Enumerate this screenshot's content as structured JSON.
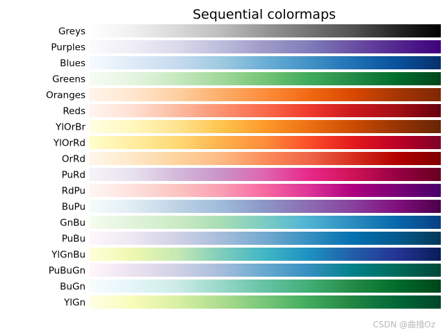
{
  "chart_data": {
    "type": "heatmap",
    "title": "Sequential colormaps",
    "colormaps": [
      {
        "name": "Greys",
        "stops": [
          "#ffffff",
          "#f0f0f0",
          "#d9d9d9",
          "#bdbdbd",
          "#969696",
          "#737373",
          "#525252",
          "#252525",
          "#000000"
        ]
      },
      {
        "name": "Purples",
        "stops": [
          "#fcfbfd",
          "#efedf5",
          "#dadaeb",
          "#bcbddc",
          "#9e9ac8",
          "#807dba",
          "#6a51a3",
          "#54278f",
          "#3f007d"
        ]
      },
      {
        "name": "Blues",
        "stops": [
          "#f7fbff",
          "#deebf7",
          "#c6dbef",
          "#9ecae1",
          "#6baed6",
          "#4292c6",
          "#2171b5",
          "#08519c",
          "#08306b"
        ]
      },
      {
        "name": "Greens",
        "stops": [
          "#f7fcf5",
          "#e5f5e0",
          "#c7e9c0",
          "#a1d99b",
          "#74c476",
          "#41ab5d",
          "#238b45",
          "#006d2c",
          "#00441b"
        ]
      },
      {
        "name": "Oranges",
        "stops": [
          "#fff5eb",
          "#fee6ce",
          "#fdd0a2",
          "#fdae6b",
          "#fd8d3c",
          "#f16913",
          "#d94801",
          "#a63603",
          "#7f2704"
        ]
      },
      {
        "name": "Reds",
        "stops": [
          "#fff5f0",
          "#fee0d2",
          "#fcbba1",
          "#fc9272",
          "#fb6a4a",
          "#ef3b2c",
          "#cb181d",
          "#a50f15",
          "#67000d"
        ]
      },
      {
        "name": "YlOrBr",
        "stops": [
          "#ffffe5",
          "#fff7bc",
          "#fee391",
          "#fec44f",
          "#fe9929",
          "#ec7014",
          "#cc4c02",
          "#993404",
          "#662506"
        ]
      },
      {
        "name": "YlOrRd",
        "stops": [
          "#ffffcc",
          "#ffeda0",
          "#fed976",
          "#feb24c",
          "#fd8d3c",
          "#fc4e2a",
          "#e31a1c",
          "#bd0026",
          "#800026"
        ]
      },
      {
        "name": "OrRd",
        "stops": [
          "#fff7ec",
          "#fee8c8",
          "#fdd49e",
          "#fdbb84",
          "#fc8d59",
          "#ef6548",
          "#d7301f",
          "#b30000",
          "#7f0000"
        ]
      },
      {
        "name": "PuRd",
        "stops": [
          "#f7f4f9",
          "#e7e1ef",
          "#d4b9da",
          "#c994c7",
          "#df65b0",
          "#e7298a",
          "#ce1256",
          "#980043",
          "#67001f"
        ]
      },
      {
        "name": "RdPu",
        "stops": [
          "#fff7f3",
          "#fde0dd",
          "#fcc5c0",
          "#fa9fb5",
          "#f768a1",
          "#dd3497",
          "#ae017e",
          "#7a0177",
          "#49006a"
        ]
      },
      {
        "name": "BuPu",
        "stops": [
          "#f7fcfd",
          "#e0ecf4",
          "#bfd3e6",
          "#9ebcda",
          "#8c96c6",
          "#8c6bb1",
          "#88419d",
          "#810f7c",
          "#4d004b"
        ]
      },
      {
        "name": "GnBu",
        "stops": [
          "#f7fcf0",
          "#e0f3db",
          "#ccebc5",
          "#a8ddb5",
          "#7bccc4",
          "#4eb3d3",
          "#2b8cbe",
          "#0868ac",
          "#084081"
        ]
      },
      {
        "name": "PuBu",
        "stops": [
          "#fff7fb",
          "#ece7f2",
          "#d0d1e6",
          "#a6bddb",
          "#74a9cf",
          "#3690c0",
          "#0570b0",
          "#045a8d",
          "#023858"
        ]
      },
      {
        "name": "YlGnBu",
        "stops": [
          "#ffffd9",
          "#edf8b1",
          "#c7e9b4",
          "#7fcdbb",
          "#41b6c4",
          "#1d91c0",
          "#225ea8",
          "#253494",
          "#081d58"
        ]
      },
      {
        "name": "PuBuGn",
        "stops": [
          "#fff7fb",
          "#ece2f0",
          "#d0d1e6",
          "#a6bddb",
          "#67a9cf",
          "#3690c0",
          "#02818a",
          "#016c59",
          "#014636"
        ]
      },
      {
        "name": "BuGn",
        "stops": [
          "#f7fcfd",
          "#e5f5f9",
          "#ccece6",
          "#99d8c9",
          "#66c2a4",
          "#41ae76",
          "#238b45",
          "#006d2c",
          "#00441b"
        ]
      },
      {
        "name": "YlGn",
        "stops": [
          "#ffffe5",
          "#f7fcb9",
          "#d9f0a3",
          "#addd8e",
          "#78c679",
          "#41ab5d",
          "#238443",
          "#006837",
          "#004529"
        ]
      }
    ]
  },
  "watermark": "CSDN @曲措Oz"
}
